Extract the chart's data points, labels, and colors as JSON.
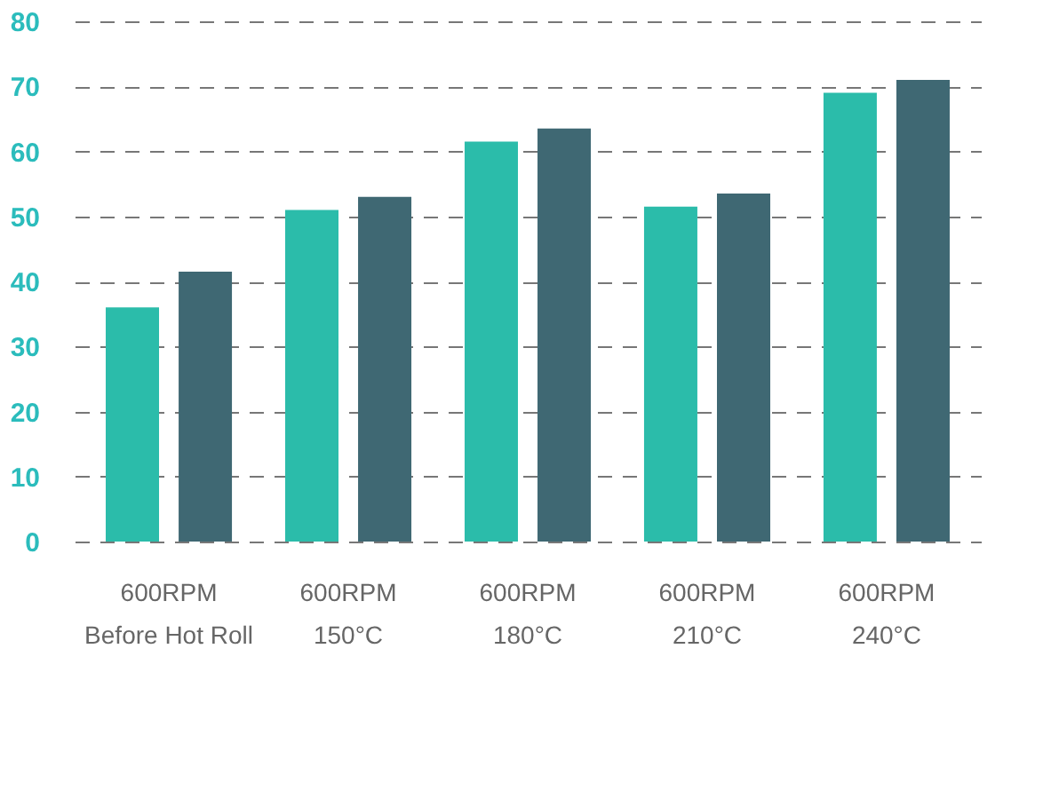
{
  "chart_data": {
    "type": "bar",
    "categories": [
      "600RPM\nBefore Hot Roll",
      "600RPM\n150°C",
      "600RPM\n180°C",
      "600RPM\n210°C",
      "600RPM\n240°C"
    ],
    "series": [
      {
        "color": "#2bbcaa",
        "values": [
          36,
          51,
          61.5,
          51.5,
          69
        ]
      },
      {
        "color": "#3f6873",
        "values": [
          41.5,
          53,
          63.5,
          53.5,
          71
        ]
      }
    ],
    "ylim": [
      0,
      80
    ],
    "yticks": [
      0,
      10,
      20,
      30,
      40,
      50,
      60,
      70,
      80
    ],
    "grid": "y",
    "line_style": "dashed"
  }
}
